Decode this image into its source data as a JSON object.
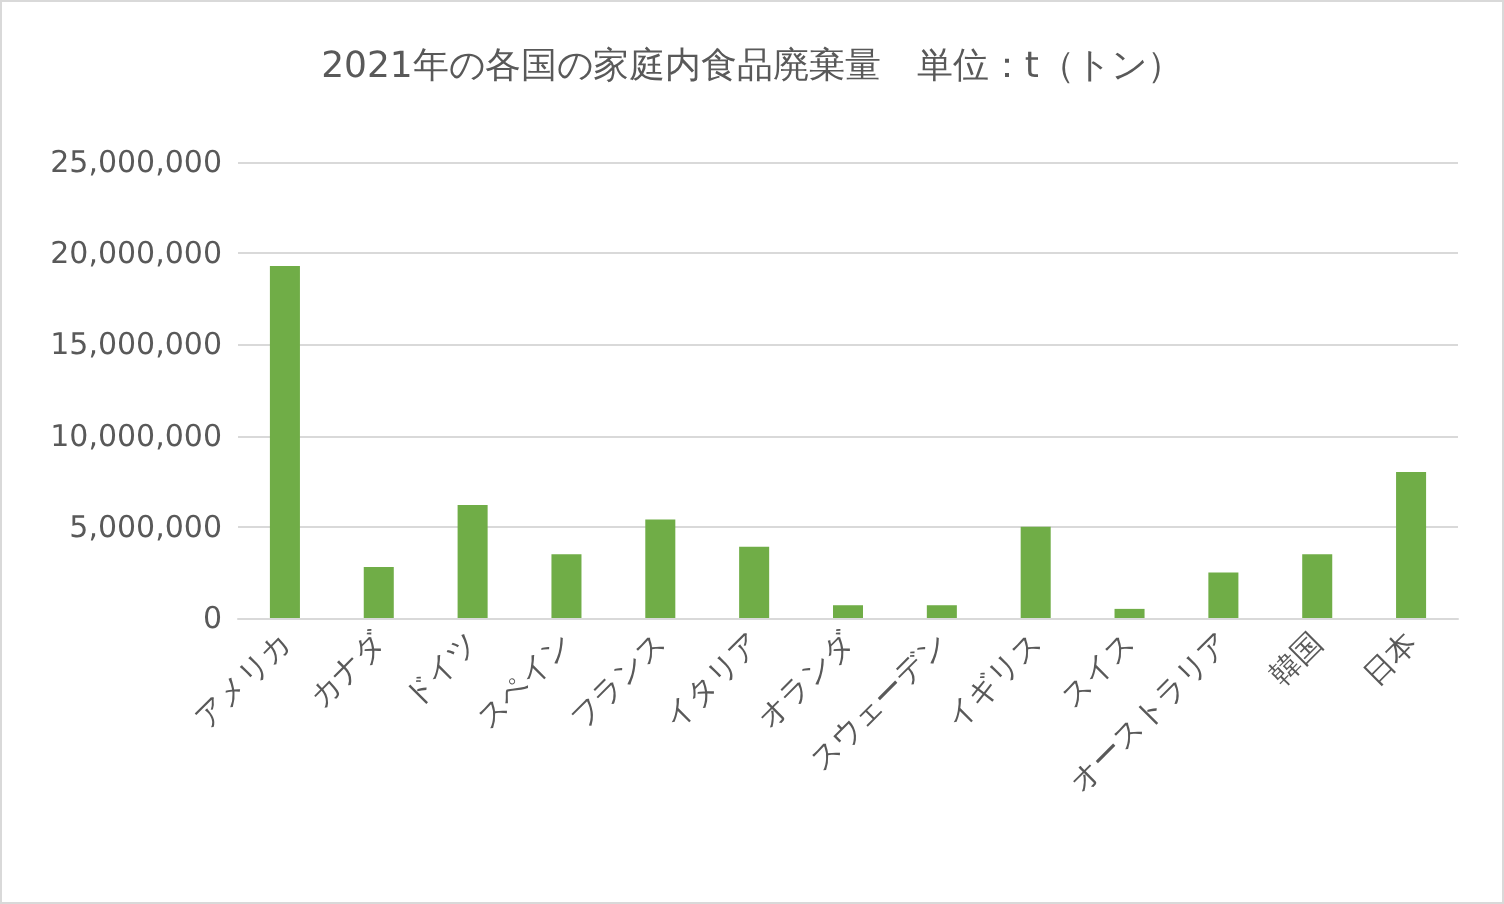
{
  "chart_data": {
    "type": "bar",
    "title": "2021年の各国の家庭内食品廃棄量　単位：t（トン）",
    "categories": [
      "アメリカ",
      "カナダ",
      "ドイツ",
      "スペイン",
      "フランス",
      "イタリア",
      "オランダ",
      "スウェーデン",
      "イギリス",
      "スイス",
      "オーストラリア",
      "韓国",
      "日本"
    ],
    "values": [
      19300000,
      2800000,
      6200000,
      3500000,
      5400000,
      3900000,
      700000,
      700000,
      5000000,
      500000,
      2500000,
      3500000,
      8000000
    ],
    "color": "#70ad47",
    "ylim": [
      0,
      25000000
    ],
    "yticks": [
      0,
      {
        "value": 5000000,
        "label": "5,000,000"
      },
      {
        "value": 10000000,
        "label": "10,000,000"
      },
      {
        "value": 15000000,
        "label": "15,000,000"
      },
      {
        "value": 20000000,
        "label": "20,000,000"
      },
      {
        "value": 25000000,
        "label": "25,000,000"
      }
    ],
    "grid": "y"
  }
}
